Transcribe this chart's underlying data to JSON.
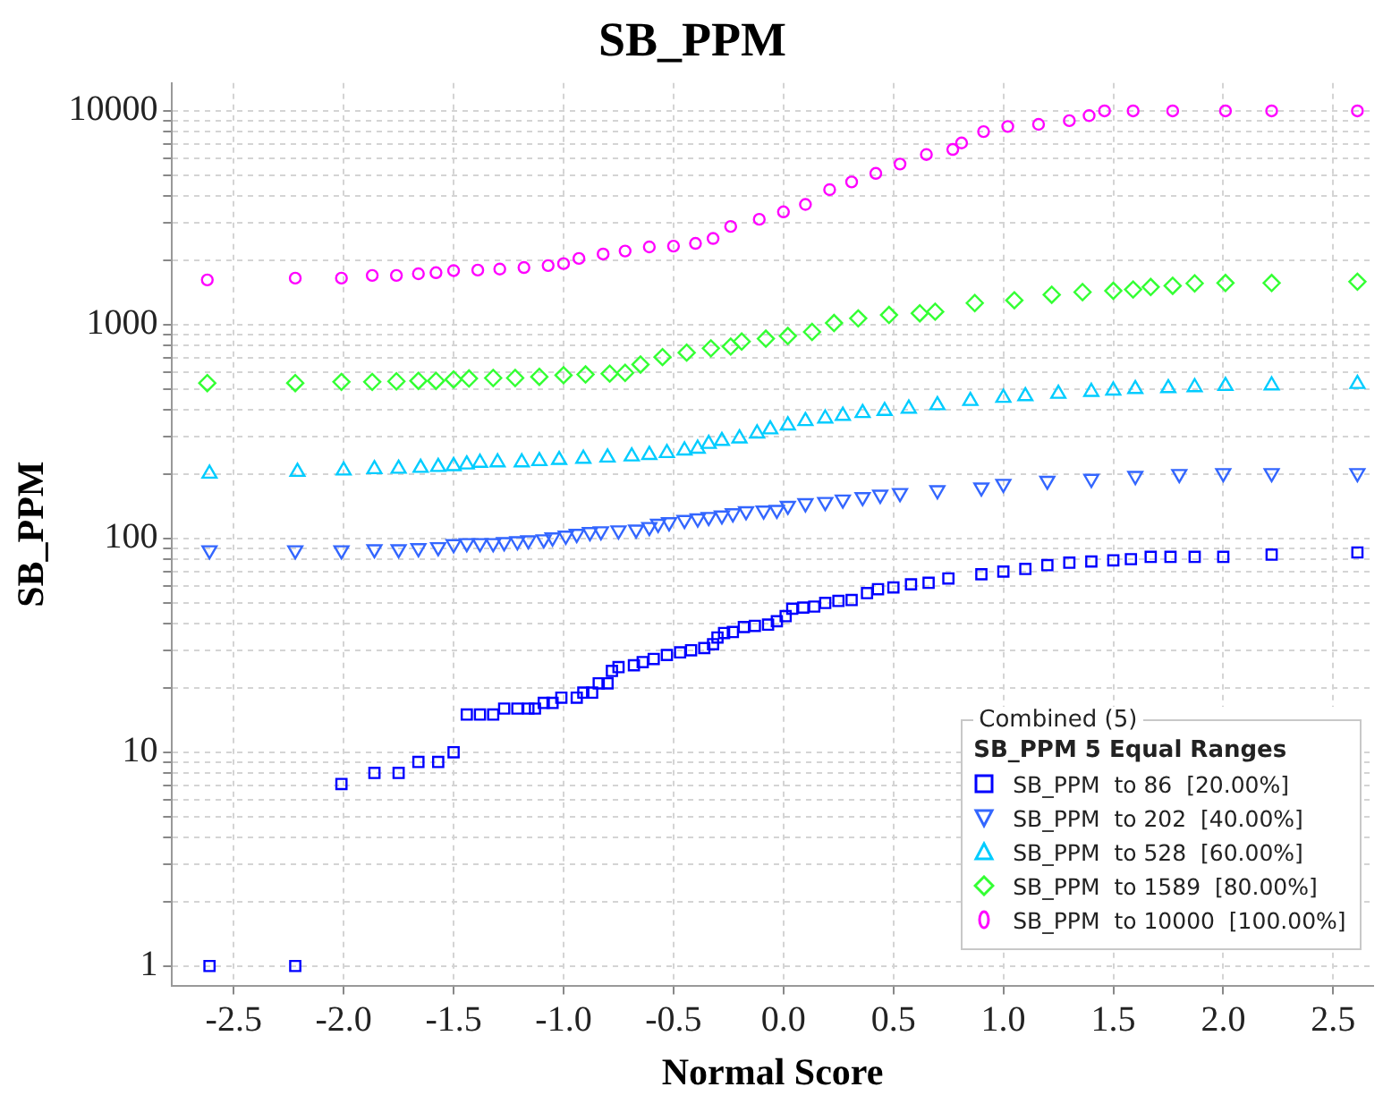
{
  "chart_data": {
    "type": "scatter",
    "title": "SB_PPM",
    "xlabel": "Normal Score",
    "ylabel": "SB_PPM",
    "legend_title": "SB_PPM 5 Equal Ranges",
    "annotations": [
      "Combined (5)"
    ],
    "xlim": [
      -2.78,
      2.68
    ],
    "xticks": [
      {
        "value": -2.5,
        "label": "-2.5"
      },
      {
        "value": -2,
        "label": "-2.0"
      },
      {
        "value": -1.5,
        "label": "-1.5"
      },
      {
        "value": -1,
        "label": "-1.0"
      },
      {
        "value": -0.5,
        "label": "-0.5"
      },
      {
        "value": 0,
        "label": "0.0"
      },
      {
        "value": 0.5,
        "label": "0.5"
      },
      {
        "value": 1,
        "label": "1.0"
      },
      {
        "value": 1.5,
        "label": "1.5"
      },
      {
        "value": 2,
        "label": "2.0"
      },
      {
        "value": 2.5,
        "label": "2.5"
      }
    ],
    "ylim": [
      0.81,
      13500
    ],
    "log": "y",
    "yticks": [
      1,
      {
        "value": 2,
        "label": null
      },
      {
        "value": 3,
        "label": null
      },
      {
        "value": 4,
        "label": null
      },
      {
        "value": 5,
        "label": null
      },
      {
        "value": 6,
        "label": null
      },
      {
        "value": 7,
        "label": null
      },
      {
        "value": 8,
        "label": null
      },
      {
        "value": 9,
        "label": null
      },
      10,
      {
        "value": 20,
        "label": null
      },
      {
        "value": 30,
        "label": null
      },
      {
        "value": 40,
        "label": null
      },
      {
        "value": 50,
        "label": null
      },
      {
        "value": 60,
        "label": null
      },
      {
        "value": 70,
        "label": null
      },
      {
        "value": 80,
        "label": null
      },
      {
        "value": 90,
        "label": null
      },
      100,
      {
        "value": 200,
        "label": null
      },
      {
        "value": 300,
        "label": null
      },
      {
        "value": 400,
        "label": null
      },
      {
        "value": 500,
        "label": null
      },
      {
        "value": 600,
        "label": null
      },
      {
        "value": 700,
        "label": null
      },
      {
        "value": 800,
        "label": null
      },
      {
        "value": 900,
        "label": null
      },
      1000,
      {
        "value": 2000,
        "label": null
      },
      {
        "value": 3000,
        "label": null
      },
      {
        "value": 4000,
        "label": null
      },
      {
        "value": 5000,
        "label": null
      },
      {
        "value": 6000,
        "label": null
      },
      {
        "value": 7000,
        "label": null
      },
      {
        "value": 8000,
        "label": null
      },
      {
        "value": 9000,
        "label": null
      },
      10000
    ],
    "grid": true,
    "legend": "bottom right",
    "series": [
      {
        "name": "SB_PPM  to 86  [20.00%]",
        "color": "#0000ff",
        "marker": "square",
        "x": [
          -2.61,
          -2.22,
          -2.01,
          -1.86,
          -1.75,
          -1.66,
          -1.57,
          -1.5,
          -1.44,
          -1.38,
          -1.32,
          -1.27,
          -1.21,
          -1.16,
          -1.13,
          -1.09,
          -1.05,
          -1.01,
          -0.94,
          -0.91,
          -0.87,
          -0.84,
          -0.8,
          -0.78,
          -0.75,
          -0.68,
          -0.64,
          -0.59,
          -0.53,
          -0.47,
          -0.42,
          -0.36,
          -0.32,
          -0.3,
          -0.27,
          -0.23,
          -0.18,
          -0.13,
          -0.07,
          -0.03,
          0.01,
          0.04,
          0.09,
          0.14,
          0.19,
          0.25,
          0.31,
          0.38,
          0.43,
          0.5,
          0.58,
          0.66,
          0.75,
          0.9,
          1.0,
          1.1,
          1.2,
          1.3,
          1.4,
          1.5,
          1.58,
          1.67,
          1.76,
          1.87,
          2.0,
          2.22,
          2.61
        ],
        "values": [
          1,
          1,
          7.1,
          8,
          8,
          9,
          9,
          10,
          15,
          15,
          15,
          16,
          16,
          16,
          16,
          17,
          17,
          18,
          18,
          19,
          19,
          21,
          21,
          24,
          25,
          25.5,
          26.4,
          27.3,
          28.5,
          29.3,
          30,
          30.7,
          32,
          34.4,
          36.1,
          36.5,
          38.5,
          39,
          39.5,
          41,
          43.3,
          46.9,
          47.5,
          48,
          49.9,
          51,
          51.5,
          55.5,
          57.9,
          59,
          61,
          62,
          65,
          68,
          70,
          72,
          75,
          77,
          78,
          79,
          80,
          82,
          82,
          82,
          82,
          84,
          86
        ]
      },
      {
        "name": "SB_PPM  to 202  [40.00%]",
        "color": "#3366ff",
        "marker": "triangle-down",
        "x": [
          -2.61,
          -2.22,
          -2.01,
          -1.86,
          -1.75,
          -1.66,
          -1.57,
          -1.5,
          -1.44,
          -1.38,
          -1.32,
          -1.27,
          -1.21,
          -1.16,
          -1.09,
          -1.05,
          -0.99,
          -0.94,
          -0.88,
          -0.83,
          -0.75,
          -0.67,
          -0.61,
          -0.57,
          -0.52,
          -0.45,
          -0.39,
          -0.34,
          -0.28,
          -0.23,
          -0.17,
          -0.09,
          -0.03,
          0.02,
          0.1,
          0.19,
          0.27,
          0.36,
          0.44,
          0.53,
          0.7,
          0.9,
          1.0,
          1.2,
          1.4,
          1.6,
          1.8,
          2.0,
          2.22,
          2.61
        ],
        "values": [
          88,
          88,
          88,
          89,
          89,
          90,
          91,
          94,
          95,
          95,
          95,
          96,
          97,
          98,
          99,
          101,
          103,
          105,
          107,
          108,
          109,
          110,
          113,
          117,
          119,
          122,
          124,
          126,
          128,
          131,
          134,
          135,
          136,
          142,
          146,
          148,
          152,
          156,
          160,
          163,
          168,
          173,
          180,
          186,
          190,
          196,
          200,
          202,
          202,
          202
        ]
      },
      {
        "name": "SB_PPM  to 528  [60.00%]",
        "color": "#00ccff",
        "marker": "triangle",
        "x": [
          -2.61,
          -2.21,
          -2.0,
          -1.86,
          -1.75,
          -1.65,
          -1.57,
          -1.5,
          -1.44,
          -1.38,
          -1.3,
          -1.19,
          -1.11,
          -1.02,
          -0.91,
          -0.8,
          -0.69,
          -0.61,
          -0.53,
          -0.45,
          -0.39,
          -0.34,
          -0.28,
          -0.2,
          -0.12,
          -0.06,
          0.02,
          0.1,
          0.19,
          0.27,
          0.36,
          0.46,
          0.57,
          0.7,
          0.85,
          1.0,
          1.1,
          1.25,
          1.4,
          1.5,
          1.6,
          1.75,
          1.87,
          2.01,
          2.22,
          2.61
        ],
        "values": [
          201,
          205,
          208,
          211,
          212,
          214,
          216,
          218,
          222,
          226,
          227,
          227,
          230,
          233,
          236,
          239,
          242,
          246,
          251,
          258,
          263,
          277,
          286,
          294,
          310,
          324,
          338,
          354,
          364,
          375,
          386,
          395,
          405,
          420,
          440,
          455,
          463,
          475,
          485,
          492,
          500,
          505,
          510,
          517,
          520,
          528
        ]
      },
      {
        "name": "SB_PPM  to 1589  [80.00%]",
        "color": "#33ff33",
        "marker": "diamond",
        "x": [
          -2.62,
          -2.22,
          -2.01,
          -1.87,
          -1.76,
          -1.66,
          -1.58,
          -1.5,
          -1.43,
          -1.32,
          -1.22,
          -1.11,
          -1.0,
          -0.9,
          -0.79,
          -0.72,
          -0.65,
          -0.55,
          -0.44,
          -0.33,
          -0.24,
          -0.19,
          -0.08,
          0.02,
          0.13,
          0.23,
          0.34,
          0.48,
          0.62,
          0.69,
          0.87,
          1.05,
          1.22,
          1.36,
          1.5,
          1.59,
          1.67,
          1.77,
          1.87,
          2.01,
          2.22,
          2.61
        ],
        "values": [
          533,
          533,
          540,
          540,
          543,
          546,
          546,
          554,
          560,
          563,
          563,
          570,
          580,
          585,
          590,
          595,
          651,
          705,
          740,
          775,
          790,
          834,
          860,
          885,
          925,
          1018,
          1070,
          1110,
          1130,
          1150,
          1262,
          1300,
          1380,
          1420,
          1440,
          1460,
          1500,
          1520,
          1560,
          1567,
          1567,
          1589
        ]
      },
      {
        "name": "SB_PPM  to 10000  [100.00%]",
        "color": "#ff00ff",
        "marker": "circle",
        "x": [
          -2.62,
          -2.22,
          -2.01,
          -1.87,
          -1.76,
          -1.66,
          -1.58,
          -1.5,
          -1.39,
          -1.29,
          -1.18,
          -1.07,
          -1.0,
          -0.93,
          -0.82,
          -0.72,
          -0.61,
          -0.5,
          -0.4,
          -0.32,
          -0.24,
          -0.11,
          0.0,
          0.1,
          0.21,
          0.31,
          0.42,
          0.53,
          0.65,
          0.77,
          0.81,
          0.91,
          1.02,
          1.16,
          1.3,
          1.39,
          1.46,
          1.59,
          1.77,
          2.01,
          2.22,
          2.61
        ],
        "values": [
          1620,
          1650,
          1650,
          1700,
          1700,
          1730,
          1750,
          1790,
          1800,
          1820,
          1850,
          1890,
          1930,
          2040,
          2140,
          2210,
          2310,
          2330,
          2400,
          2530,
          2880,
          3110,
          3370,
          3650,
          4280,
          4650,
          5100,
          5640,
          6250,
          6600,
          7080,
          8000,
          8450,
          8650,
          9000,
          9500,
          10000,
          10000,
          10000,
          10000,
          10000,
          10000
        ]
      }
    ]
  }
}
